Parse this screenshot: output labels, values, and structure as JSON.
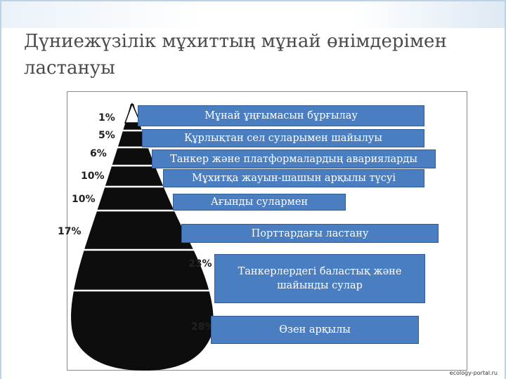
{
  "title": "Дүниежүзілік мұхиттың мұнай өнімдерімен ластануы",
  "segments": [
    {
      "percent": "1%",
      "label": "Мұнай ұңғымасын бұрғылау"
    },
    {
      "percent": "5%",
      "label": "Құрлықтан сел суларымен шайылуы"
    },
    {
      "percent": "6%",
      "label": "Танкер және платформалардың аварияларды"
    },
    {
      "percent": "10%",
      "label": "Мұхитқа жауын-шашын арқылы түсуі"
    },
    {
      "percent": "10%",
      "label": "Ағынды сулармен"
    },
    {
      "percent": "17%",
      "label": "Порттардағы ластану"
    },
    {
      "percent": "23%",
      "label": "Танкерлердегі баластық және шайынды сулар"
    },
    {
      "percent": "28%",
      "label": "Өзен арқылы"
    }
  ],
  "watermark": "ecology-portal.ru",
  "colors": {
    "label_fill": "#4a7ec0",
    "label_border": "#2c5d9a",
    "drop": "#0d0d0d",
    "title": "#4a4a4a"
  }
}
